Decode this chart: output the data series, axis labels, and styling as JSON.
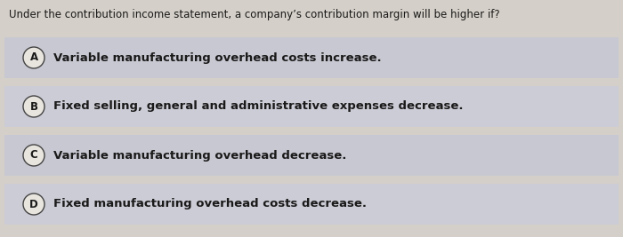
{
  "question": "Under the contribution income statement, a company’s contribution margin will be higher if?",
  "options": [
    {
      "label": "A",
      "text": "Variable manufacturing overhead costs increase."
    },
    {
      "label": "B",
      "text": "Fixed selling, general and administrative expenses decrease."
    },
    {
      "label": "C",
      "text": "Variable manufacturing overhead decrease."
    },
    {
      "label": "D",
      "text": "Fixed manufacturing overhead costs decrease."
    }
  ],
  "bg_color": "#d4cfc8",
  "option_bg_even": "#c8c8d2",
  "option_bg_odd": "#ccccd6",
  "strip_bg": "#c0c0cc",
  "circle_facecolor": "#e8e4de",
  "circle_edgecolor": "#444444",
  "text_color": "#1a1a1a",
  "question_fontsize": 8.5,
  "option_fontsize": 9.5,
  "label_fontsize": 8.5,
  "fig_width": 7.0,
  "fig_height": 2.67,
  "dpi": 100
}
